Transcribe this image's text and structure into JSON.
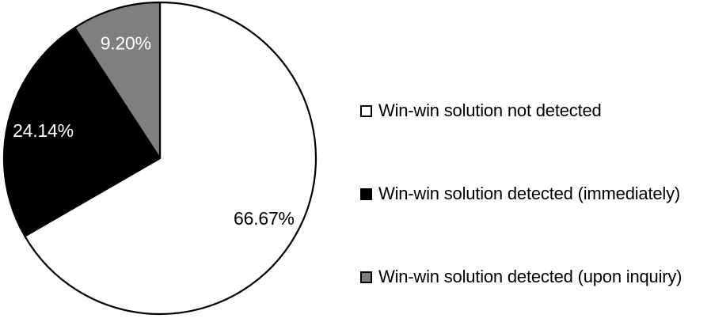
{
  "chart_data": {
    "type": "pie",
    "title": "",
    "start_angle_deg": 0,
    "direction": "clockwise",
    "legend_position": "right",
    "background": "#ffffff",
    "outline_color": "#000000",
    "slices": [
      {
        "label": "Win-win solution not detected",
        "value": 66.67,
        "data_label": "66.67%",
        "color": "#ffffff",
        "text_color": "#000000"
      },
      {
        "label": "Win-win solution detected (immediately)",
        "value": 24.14,
        "data_label": "24.14%",
        "color": "#000000",
        "text_color": "#ffffff"
      },
      {
        "label": "Win-win solution detected (upon inquiry)",
        "value": 9.2,
        "data_label": "9.20%",
        "color": "#7f7f7f",
        "text_color": "#ffffff"
      }
    ]
  }
}
